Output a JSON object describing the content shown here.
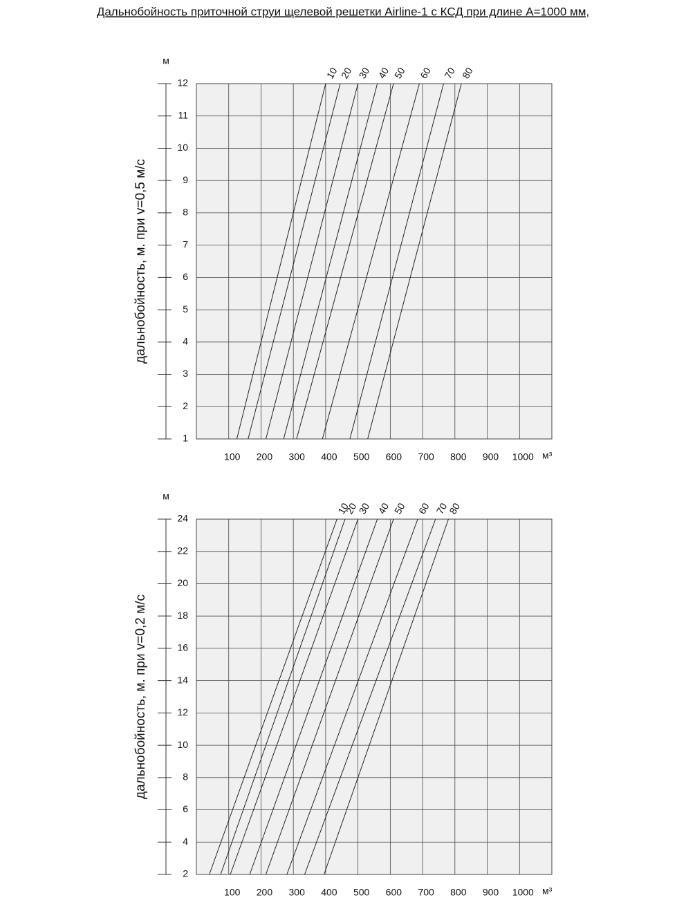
{
  "title": "Дальнобойность приточной струи щелевой решетки Airline-1 с КСД при длине А=1000 мм,",
  "chart_data": [
    {
      "type": "line",
      "y_label": "дальнобойность, м. при v=0,5 м/с",
      "y_unit": "м",
      "x_unit": "м³",
      "xlim": [
        0,
        1100
      ],
      "xticks": [
        100,
        200,
        300,
        400,
        500,
        600,
        700,
        800,
        900,
        1000
      ],
      "ylim": [
        1,
        12
      ],
      "yticks": [
        1,
        2,
        3,
        4,
        5,
        6,
        7,
        8,
        9,
        10,
        11,
        12
      ],
      "grid": true,
      "series": [
        {
          "name": "10",
          "color": "#222",
          "x": [
            125,
            400
          ],
          "values": [
            1,
            12
          ]
        },
        {
          "name": "20",
          "color": "#222",
          "x": [
            160,
            445
          ],
          "values": [
            1,
            12
          ]
        },
        {
          "name": "30",
          "color": "#222",
          "x": [
            215,
            500
          ],
          "values": [
            1,
            12
          ]
        },
        {
          "name": "40",
          "color": "#222",
          "x": [
            270,
            560
          ],
          "values": [
            1,
            12
          ]
        },
        {
          "name": "50",
          "color": "#222",
          "x": [
            310,
            610
          ],
          "values": [
            1,
            12
          ]
        },
        {
          "name": "60",
          "color": "#222",
          "x": [
            390,
            690
          ],
          "values": [
            1,
            12
          ]
        },
        {
          "name": "70",
          "color": "#222",
          "x": [
            475,
            765
          ],
          "values": [
            1,
            12
          ]
        },
        {
          "name": "80",
          "color": "#222",
          "x": [
            530,
            820
          ],
          "values": [
            1,
            12
          ]
        }
      ]
    },
    {
      "type": "line",
      "y_label": "дальнобойность, м. при v=0,2 м/с",
      "y_unit": "м",
      "x_unit": "м³",
      "xlim": [
        0,
        1100
      ],
      "xticks": [
        100,
        200,
        300,
        400,
        500,
        600,
        700,
        800,
        900,
        1000
      ],
      "ylim": [
        2,
        24
      ],
      "yticks": [
        2,
        4,
        6,
        8,
        10,
        12,
        14,
        16,
        18,
        20,
        22,
        24
      ],
      "grid": true,
      "series": [
        {
          "name": "10",
          "color": "#222",
          "x": [
            40,
            435
          ],
          "values": [
            2,
            24
          ]
        },
        {
          "name": "20",
          "color": "#222",
          "x": [
            75,
            460
          ],
          "values": [
            2,
            24
          ]
        },
        {
          "name": "30",
          "color": "#222",
          "x": [
            105,
            500
          ],
          "values": [
            2,
            24
          ]
        },
        {
          "name": "40",
          "color": "#222",
          "x": [
            165,
            560
          ],
          "values": [
            2,
            24
          ]
        },
        {
          "name": "50",
          "color": "#222",
          "x": [
            215,
            610
          ],
          "values": [
            2,
            24
          ]
        },
        {
          "name": "60",
          "color": "#222",
          "x": [
            280,
            685
          ],
          "values": [
            2,
            24
          ]
        },
        {
          "name": "70",
          "color": "#222",
          "x": [
            335,
            740
          ],
          "values": [
            2,
            24
          ]
        },
        {
          "name": "80",
          "color": "#222",
          "x": [
            395,
            780
          ],
          "values": [
            2,
            24
          ]
        }
      ]
    }
  ]
}
